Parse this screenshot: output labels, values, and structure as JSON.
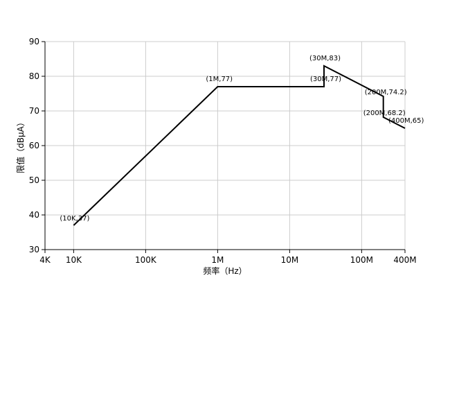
{
  "chart_data": {
    "type": "line",
    "xscale": "log",
    "xlabel": "频率（Hz）",
    "ylabel": "限值（dBμA）",
    "xlim": [
      4000,
      400000000
    ],
    "ylim": [
      30,
      90
    ],
    "grid": true,
    "xticks": [
      {
        "value": 4000,
        "label": "4K"
      },
      {
        "value": 10000,
        "label": "10K"
      },
      {
        "value": 100000,
        "label": "100K"
      },
      {
        "value": 1000000,
        "label": "1M"
      },
      {
        "value": 10000000,
        "label": "10M"
      },
      {
        "value": 100000000,
        "label": "100M"
      },
      {
        "value": 400000000,
        "label": "400M"
      }
    ],
    "yticks": [
      30,
      40,
      50,
      60,
      70,
      80,
      90
    ],
    "series": [
      {
        "color": "#000000",
        "x": [
          10000,
          1000000,
          30000000,
          30000000,
          200000000,
          200000000,
          400000000
        ],
        "y": [
          37,
          77,
          77,
          83,
          74.2,
          68.2,
          65
        ]
      }
    ],
    "annotations": [
      {
        "text": "(10K,37)",
        "x": 10000,
        "y": 37
      },
      {
        "text": "(1M,77)",
        "x": 1000000,
        "y": 77
      },
      {
        "text": "(30M,77)",
        "x": 30000000,
        "y": 77
      },
      {
        "text": "(30M,83)",
        "x": 30000000,
        "y": 83
      },
      {
        "text": "(200M,74.2)",
        "x": 200000000,
        "y": 74.2
      },
      {
        "text": "(200M,68.2)",
        "x": 200000000,
        "y": 68.2
      },
      {
        "text": "(400M,65)",
        "x": 400000000,
        "y": 65
      }
    ]
  }
}
